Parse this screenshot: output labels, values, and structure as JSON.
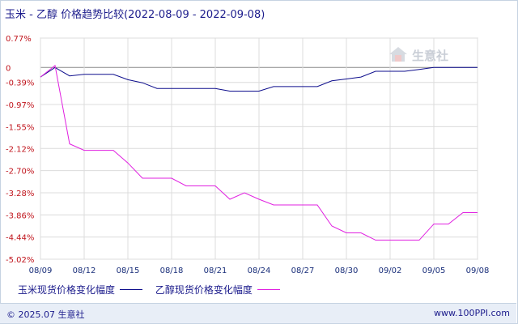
{
  "header": {
    "title": "玉米 - 乙醇 价格趋势比较(2022-08-09 - 2022-09-08)"
  },
  "watermark": {
    "text": "生意社"
  },
  "footer": {
    "copyright": "© 2025.07 生意社",
    "site": "www.100PPI.com"
  },
  "chart_data": {
    "type": "line",
    "y_tick_labels": [
      "0.77%",
      "0",
      "-0.39%",
      "-0.97%",
      "-1.55%",
      "-2.12%",
      "-2.70%",
      "-3.28%",
      "-3.86%",
      "-4.44%",
      "-5.02%"
    ],
    "y_tick_values": [
      0.77,
      0,
      -0.39,
      -0.97,
      -1.55,
      -2.12,
      -2.7,
      -3.28,
      -3.86,
      -4.44,
      -5.02
    ],
    "ylim": [
      -5.02,
      0.77
    ],
    "x_tick_labels": [
      "08/09",
      "08/12",
      "08/15",
      "08/18",
      "08/21",
      "08/24",
      "08/27",
      "08/30",
      "09/02",
      "09/05",
      "09/08"
    ],
    "x_range_days": [
      0,
      30
    ],
    "grid": true,
    "legend_position": "bottom-left",
    "series": [
      {
        "name": "玉米现货价格变化幅度",
        "color": "#0d0d8c",
        "x": [
          0,
          1,
          2,
          3,
          5,
          6,
          7,
          8,
          9,
          10,
          11,
          12,
          13,
          14,
          15,
          16,
          17,
          18,
          19,
          20,
          21,
          22,
          23,
          24,
          25,
          26,
          27,
          28,
          29,
          30
        ],
        "y": [
          -0.25,
          0,
          -0.22,
          -0.18,
          -0.18,
          -0.32,
          -0.4,
          -0.55,
          -0.55,
          -0.55,
          -0.55,
          -0.55,
          -0.62,
          -0.62,
          -0.62,
          -0.5,
          -0.5,
          -0.5,
          -0.5,
          -0.35,
          -0.3,
          -0.25,
          -0.1,
          -0.1,
          -0.1,
          -0.05,
          0,
          0,
          0,
          0
        ]
      },
      {
        "name": "乙醇现货价格变化幅度",
        "color": "#e020e0",
        "x": [
          0,
          1,
          2,
          3,
          5,
          6,
          7,
          8,
          9,
          10,
          11,
          12,
          13,
          14,
          15,
          16,
          17,
          18,
          19,
          20,
          21,
          22,
          23,
          24,
          25,
          26,
          27,
          28,
          29,
          30
        ],
        "y": [
          -0.25,
          0.05,
          -2.0,
          -2.17,
          -2.17,
          -2.5,
          -2.9,
          -2.9,
          -2.9,
          -3.1,
          -3.1,
          -3.1,
          -3.45,
          -3.28,
          -3.45,
          -3.6,
          -3.6,
          -3.6,
          -3.6,
          -4.15,
          -4.33,
          -4.33,
          -4.52,
          -4.52,
          -4.52,
          -4.52,
          -4.1,
          -4.1,
          -3.8,
          -3.8
        ]
      }
    ]
  }
}
